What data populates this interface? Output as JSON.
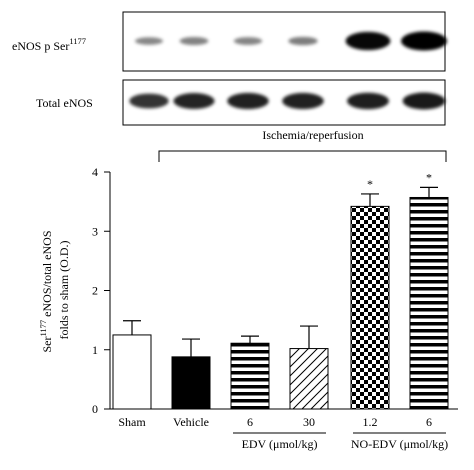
{
  "blots": {
    "phospho": {
      "label": "eNOS p Ser",
      "sup": "1177",
      "intensities": [
        0.18,
        0.22,
        0.2,
        0.24,
        0.95,
        1.0
      ]
    },
    "total": {
      "label": "Total eNOS",
      "intensities": [
        0.7,
        0.78,
        0.8,
        0.8,
        0.82,
        0.85
      ]
    }
  },
  "bracket_label": "Ischemia/reperfusion",
  "chart_data": {
    "type": "bar",
    "categories": [
      "Sham",
      "Vehicle",
      "6",
      "30",
      "1.2",
      "6"
    ],
    "values": [
      1.25,
      0.88,
      1.11,
      1.02,
      3.42,
      3.57
    ],
    "errors": [
      0.24,
      0.3,
      0.12,
      0.38,
      0.21,
      0.17
    ],
    "significant": [
      false,
      false,
      false,
      false,
      true,
      true
    ],
    "significance_marker": "*",
    "fills": [
      "white",
      "black",
      "horizontal-stripes",
      "diagonal-stripes",
      "checkerboard",
      "horizontal-stripes"
    ],
    "ylabel_lines": [
      {
        "pre": "Ser",
        "sup": "1177",
        "post": " eNOS/total eNOS"
      },
      {
        "pre": "folds to sham (O.D.)",
        "sup": "",
        "post": ""
      }
    ],
    "ylim": [
      0,
      4
    ],
    "yticks": [
      "0",
      "1",
      "2",
      "3",
      "4"
    ],
    "groups": [
      {
        "label": "EDV (μmol/kg)",
        "members": [
          2,
          3
        ]
      },
      {
        "label": "NO-EDV (μmol/kg)",
        "members": [
          4,
          5
        ]
      }
    ],
    "grid": false
  }
}
